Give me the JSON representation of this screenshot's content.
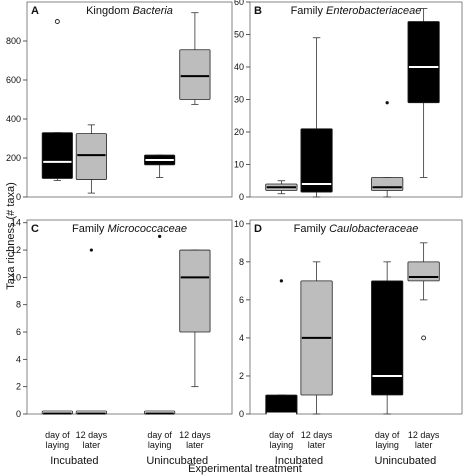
{
  "figure": {
    "ylabel": "Taxa richness (# taxa)",
    "xlabel": "Experimental treatment",
    "colors": {
      "black_box": "#000000",
      "gray_box": "#bdbdbd",
      "white_box": "#ffffff",
      "median_on_black": "#ffffff",
      "median_on_light": "#000000"
    }
  },
  "chart_data": [
    {
      "type": "box",
      "panel": "A",
      "title_prefix": "Kingdom ",
      "title_italic": "Bacteria",
      "ylim": [
        0,
        1000
      ],
      "yticks": [
        "0",
        "200",
        "400",
        "600",
        "800"
      ],
      "show_xticklabels": false,
      "boxes": [
        {
          "group": "Incubated",
          "time": "day of laying",
          "color": "black",
          "whislo": 85,
          "q1": 95,
          "med": 180,
          "q3": 330,
          "whishi": 330,
          "fliers": [
            900
          ],
          "flier_style": "circle"
        },
        {
          "group": "Incubated",
          "time": "12 days later",
          "color": "gray",
          "whislo": 20,
          "q1": 90,
          "med": 215,
          "q3": 325,
          "whishi": 370,
          "fliers": []
        },
        {
          "group": "Unincubated",
          "time": "day of laying",
          "color": "black",
          "whislo": 100,
          "q1": 165,
          "med": 190,
          "q3": 215,
          "whishi": 215,
          "fliers": []
        },
        {
          "group": "Unincubated",
          "time": "12 days later",
          "color": "gray",
          "whislo": 475,
          "q1": 500,
          "med": 620,
          "q3": 755,
          "whishi": 945,
          "fliers": []
        }
      ]
    },
    {
      "type": "box",
      "panel": "B",
      "title_prefix": "Family ",
      "title_italic": "Enterobacteriaceae",
      "ylim": [
        0,
        60
      ],
      "yticks": [
        "0",
        "10",
        "20",
        "30",
        "40",
        "50",
        "60"
      ],
      "show_xticklabels": false,
      "boxes": [
        {
          "group": "Incubated",
          "time": "day of laying",
          "color": "gray",
          "whislo": 1,
          "q1": 2,
          "med": 3,
          "q3": 4,
          "whishi": 5,
          "fliers": []
        },
        {
          "group": "Incubated",
          "time": "12 days later",
          "color": "black",
          "whislo": 0,
          "q1": 1.5,
          "med": 4,
          "q3": 21,
          "whishi": 49,
          "fliers": []
        },
        {
          "group": "Unincubated",
          "time": "day of laying",
          "color": "gray",
          "whislo": 0,
          "q1": 2,
          "med": 3,
          "q3": 6,
          "whishi": 6,
          "fliers": [
            29
          ],
          "flier_style": "dot"
        },
        {
          "group": "Unincubated",
          "time": "12 days later",
          "color": "black",
          "whislo": 6,
          "q1": 29,
          "med": 40,
          "q3": 54,
          "whishi": 58,
          "fliers": []
        }
      ]
    },
    {
      "type": "box",
      "panel": "C",
      "title_prefix": "Family ",
      "title_italic": "Micrococcaceae",
      "ylim": [
        0,
        14.2
      ],
      "yticks": [
        "0",
        "2",
        "4",
        "6",
        "8",
        "10",
        "12",
        "14"
      ],
      "show_xticklabels": true,
      "boxes": [
        {
          "group": "Incubated",
          "time": "day of laying",
          "color": "white",
          "whislo": 0,
          "q1": 0,
          "med": 0,
          "q3": 0,
          "whishi": 0,
          "fliers": []
        },
        {
          "group": "Incubated",
          "time": "12 days later",
          "color": "white",
          "whislo": 0,
          "q1": 0,
          "med": 0,
          "q3": 0,
          "whishi": 0,
          "fliers": [
            12
          ],
          "flier_style": "dot"
        },
        {
          "group": "Unincubated",
          "time": "day of laying",
          "color": "white",
          "whislo": 0,
          "q1": 0,
          "med": 0,
          "q3": 0,
          "whishi": 0,
          "fliers": [
            13
          ],
          "flier_style": "dot"
        },
        {
          "group": "Unincubated",
          "time": "12 days later",
          "color": "gray",
          "whislo": 2,
          "q1": 6,
          "med": 10,
          "q3": 12,
          "whishi": 12,
          "fliers": []
        }
      ]
    },
    {
      "type": "box",
      "panel": "D",
      "title_prefix": "Family ",
      "title_italic": "Caulobacteraceae",
      "ylim": [
        0,
        10.2
      ],
      "yticks": [
        "0",
        "2",
        "4",
        "6",
        "8",
        "10"
      ],
      "show_xticklabels": true,
      "boxes": [
        {
          "group": "Incubated",
          "time": "day of laying",
          "color": "black",
          "whislo": 0,
          "q1": 0,
          "med": 0,
          "q3": 1,
          "whishi": 1,
          "fliers": [
            7
          ],
          "flier_style": "dot"
        },
        {
          "group": "Incubated",
          "time": "12 days later",
          "color": "gray",
          "whislo": 0,
          "q1": 1,
          "med": 4,
          "q3": 7,
          "whishi": 8,
          "fliers": []
        },
        {
          "group": "Unincubated",
          "time": "day of laying",
          "color": "black",
          "whislo": 0,
          "q1": 1,
          "med": 2,
          "q3": 7,
          "whishi": 8,
          "fliers": []
        },
        {
          "group": "Unincubated",
          "time": "12 days later",
          "color": "gray",
          "whislo": 6,
          "q1": 7,
          "med": 7.2,
          "q3": 8,
          "whishi": 9,
          "fliers": [
            4
          ],
          "flier_style": "circle"
        }
      ]
    }
  ],
  "xticks": {
    "line1": [
      "day of",
      "12 days",
      "day of",
      "12 days"
    ],
    "line2": [
      "laying",
      "later",
      "laying",
      "later"
    ],
    "groups": [
      "Incubated",
      "Unincubated"
    ]
  }
}
